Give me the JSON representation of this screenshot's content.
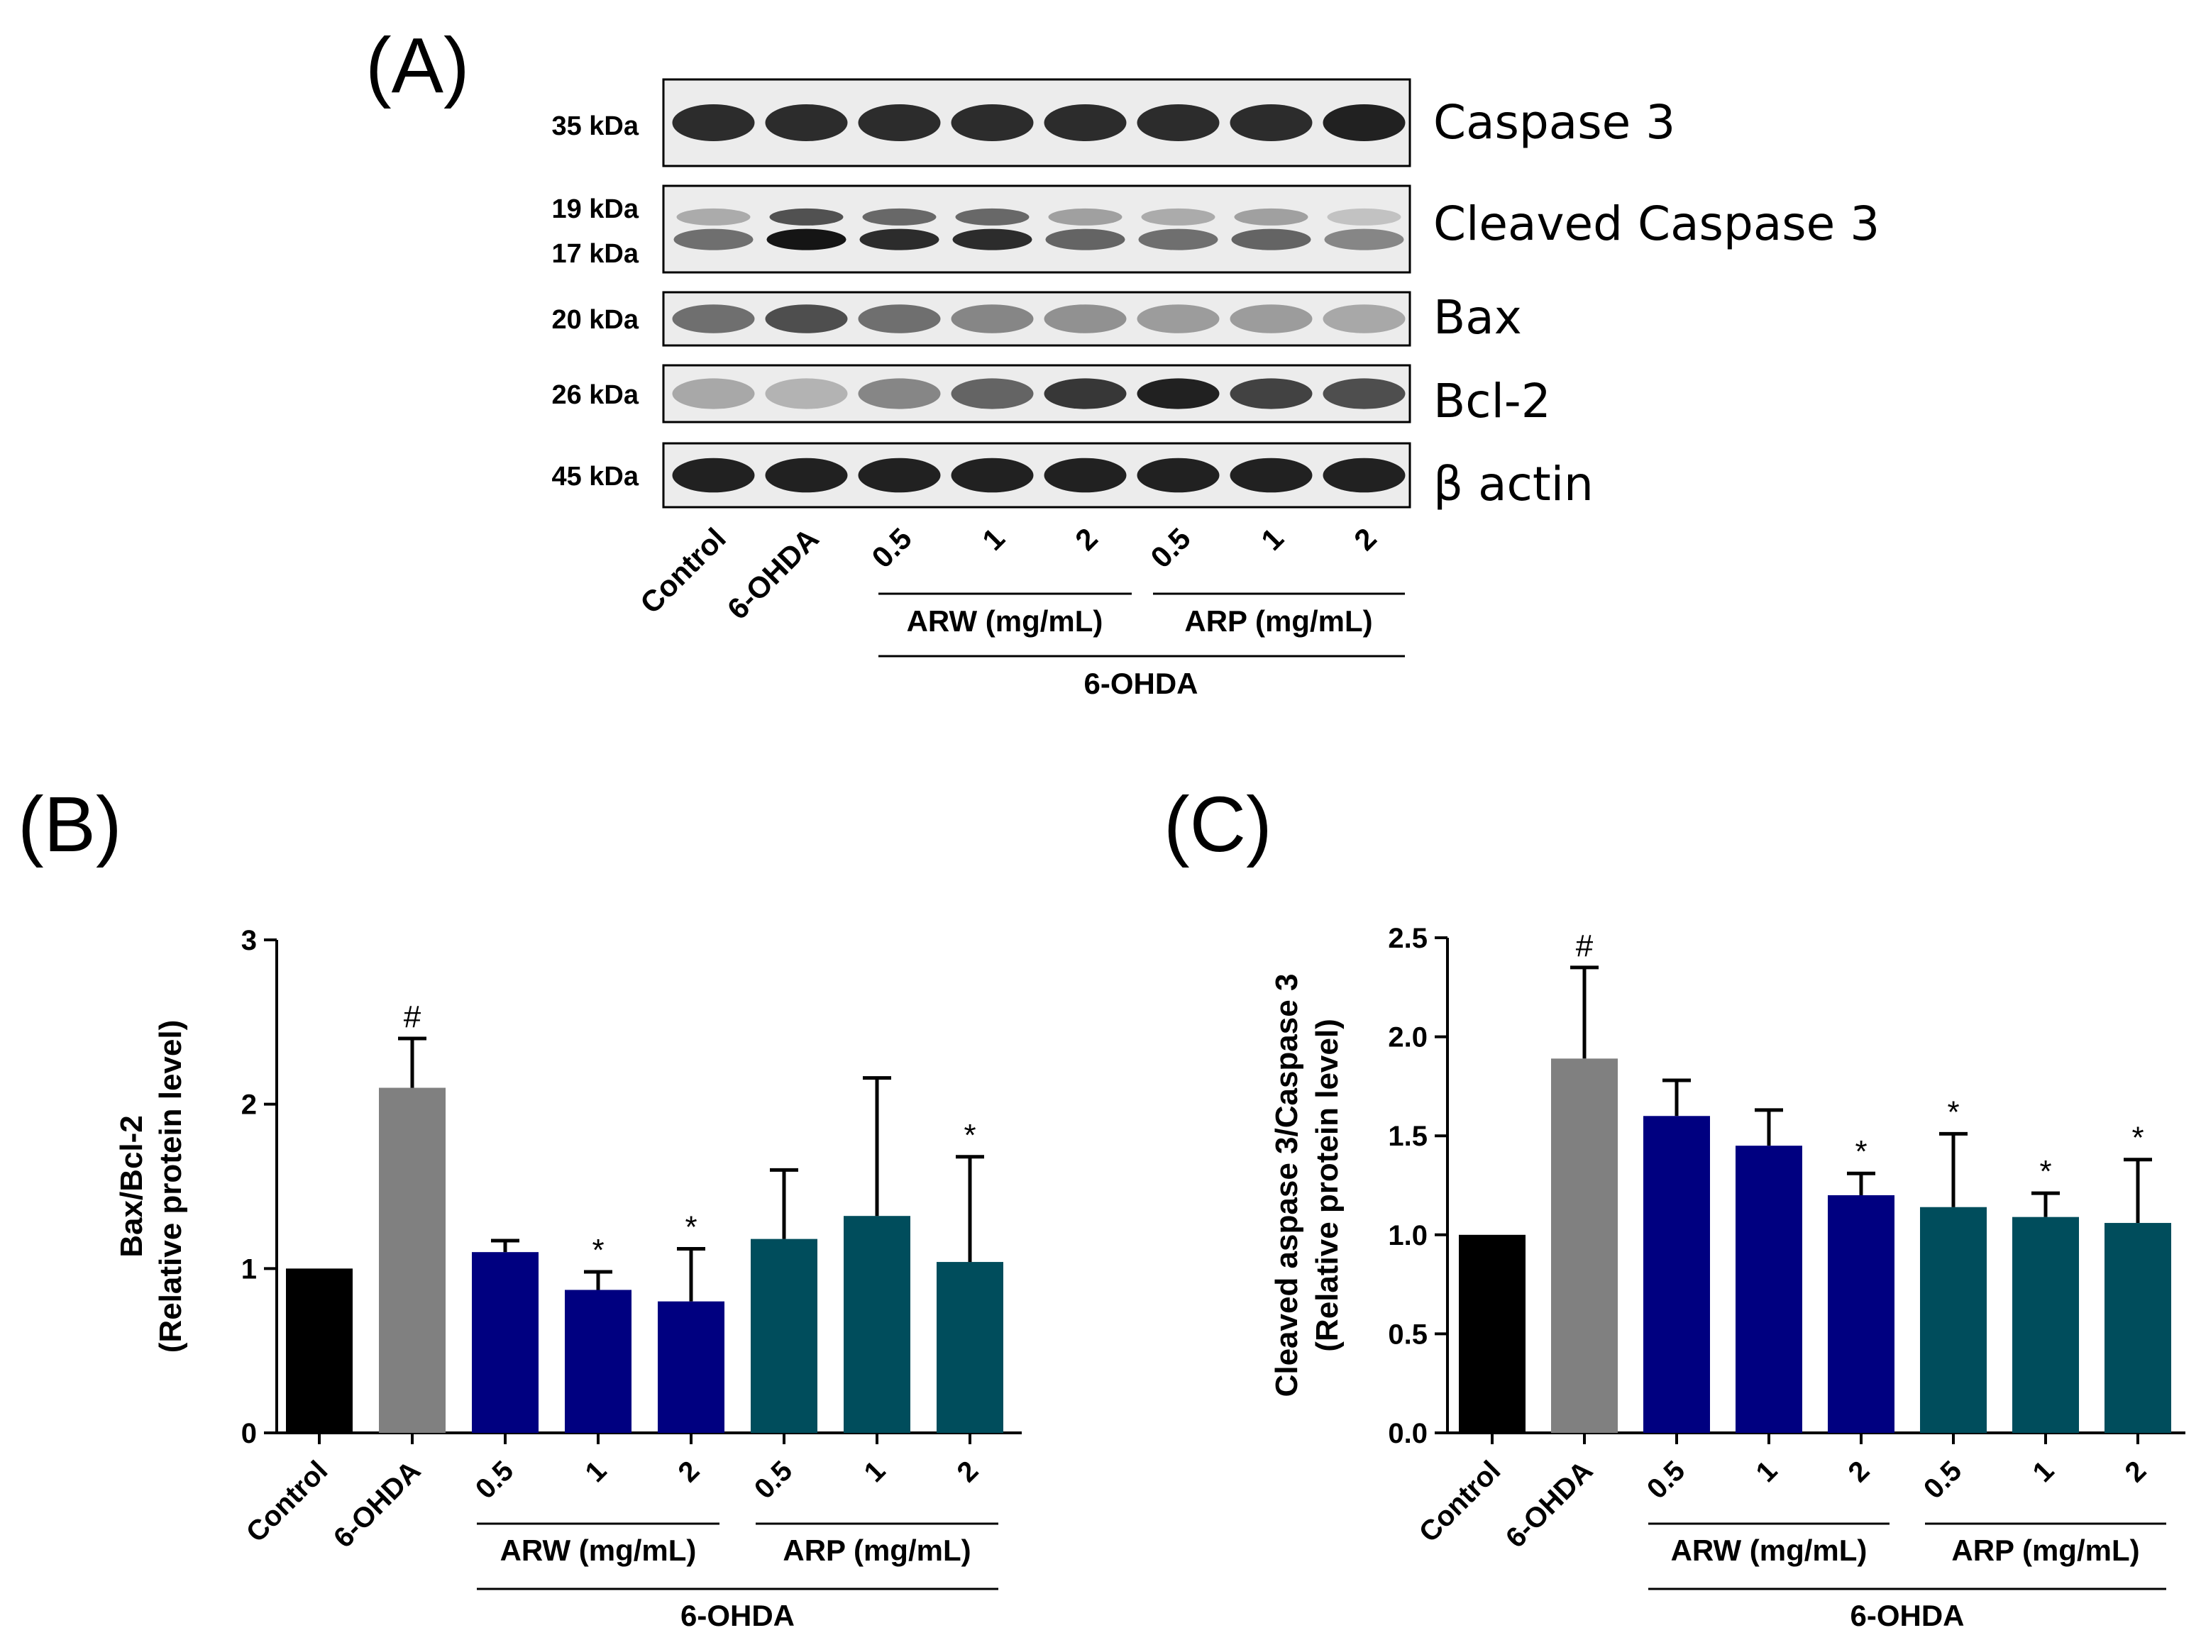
{
  "panel_a": {
    "label": "(A)",
    "blots": [
      {
        "name": "Caspase 3",
        "kda": [
          "35 kDa"
        ],
        "intensity": [
          0.85,
          0.85,
          0.85,
          0.85,
          0.85,
          0.85,
          0.85,
          0.9
        ],
        "double": false
      },
      {
        "name": "Cleaved Caspase 3",
        "kda": [
          "19 kDa",
          "17 kDa"
        ],
        "intensity": [
          0.55,
          0.95,
          0.85,
          0.85,
          0.6,
          0.55,
          0.6,
          0.45
        ],
        "double": true
      },
      {
        "name": "Bax",
        "kda": [
          "20 kDa"
        ],
        "intensity": [
          0.55,
          0.7,
          0.55,
          0.45,
          0.4,
          0.35,
          0.35,
          0.3
        ],
        "double": false
      },
      {
        "name": "Bcl-2",
        "kda": [
          "26 kDa"
        ],
        "intensity": [
          0.3,
          0.25,
          0.45,
          0.6,
          0.8,
          0.9,
          0.75,
          0.7
        ],
        "double": false
      },
      {
        "name": "β actin",
        "kda": [
          "45 kDa"
        ],
        "intensity": [
          0.9,
          0.9,
          0.9,
          0.9,
          0.9,
          0.9,
          0.9,
          0.9
        ],
        "double": false
      }
    ],
    "lanes": [
      "Control",
      "6-OHDA",
      "0.5",
      "1",
      "2",
      "0.5",
      "1",
      "2"
    ],
    "groups": [
      "ARW (mg/mL)",
      "ARP (mg/mL)"
    ],
    "treatment": "6-OHDA"
  },
  "colors": {
    "control": "#000000",
    "ohda": "#808080",
    "arw": "#000080",
    "arp": "#004d5c"
  },
  "chart_data": [
    {
      "panel": "(B)",
      "type": "bar",
      "ylabel_line1": "Bax/Bcl-2",
      "ylabel_line2": "(Relative protein level)",
      "ylim": [
        0,
        3
      ],
      "yticks": [
        "0",
        "1",
        "2",
        "3"
      ],
      "ytick_values": [
        0,
        1,
        2,
        3
      ],
      "categories": [
        "Control",
        "6-OHDA",
        "0.5",
        "1",
        "2",
        "0.5",
        "1",
        "2"
      ],
      "values": [
        1.0,
        2.1,
        1.1,
        0.87,
        0.8,
        1.18,
        1.32,
        1.04
      ],
      "errors": [
        0,
        0.3,
        0.07,
        0.11,
        0.32,
        0.42,
        0.84,
        0.64
      ],
      "markers": [
        "",
        "#",
        "",
        "*",
        "*",
        "",
        "",
        "*"
      ],
      "color_keys": [
        "control",
        "ohda",
        "arw",
        "arw",
        "arw",
        "arp",
        "arp",
        "arp"
      ],
      "groups": [
        "ARW (mg/mL)",
        "ARP (mg/mL)"
      ],
      "treatment": "6-OHDA"
    },
    {
      "panel": "(C)",
      "type": "bar",
      "ylabel_line1": "Cleaved aspase 3/Caspase 3",
      "ylabel_line2": "(Relative protein level)",
      "ylim": [
        0,
        2.5
      ],
      "yticks": [
        "0.0",
        "0.5",
        "1.0",
        "1.5",
        "2.0",
        "2.5"
      ],
      "ytick_values": [
        0,
        0.5,
        1.0,
        1.5,
        2.0,
        2.5
      ],
      "categories": [
        "Control",
        "6-OHDA",
        "0.5",
        "1",
        "2",
        "0.5",
        "1",
        "2"
      ],
      "values": [
        1.0,
        1.89,
        1.6,
        1.45,
        1.2,
        1.14,
        1.09,
        1.06
      ],
      "errors": [
        0,
        0.46,
        0.18,
        0.18,
        0.11,
        0.37,
        0.12,
        0.32
      ],
      "markers": [
        "",
        "#",
        "",
        "",
        "*",
        "*",
        "*",
        "*"
      ],
      "color_keys": [
        "control",
        "ohda",
        "arw",
        "arw",
        "arw",
        "arp",
        "arp",
        "arp"
      ],
      "groups": [
        "ARW (mg/mL)",
        "ARP (mg/mL)"
      ],
      "treatment": "6-OHDA"
    }
  ]
}
